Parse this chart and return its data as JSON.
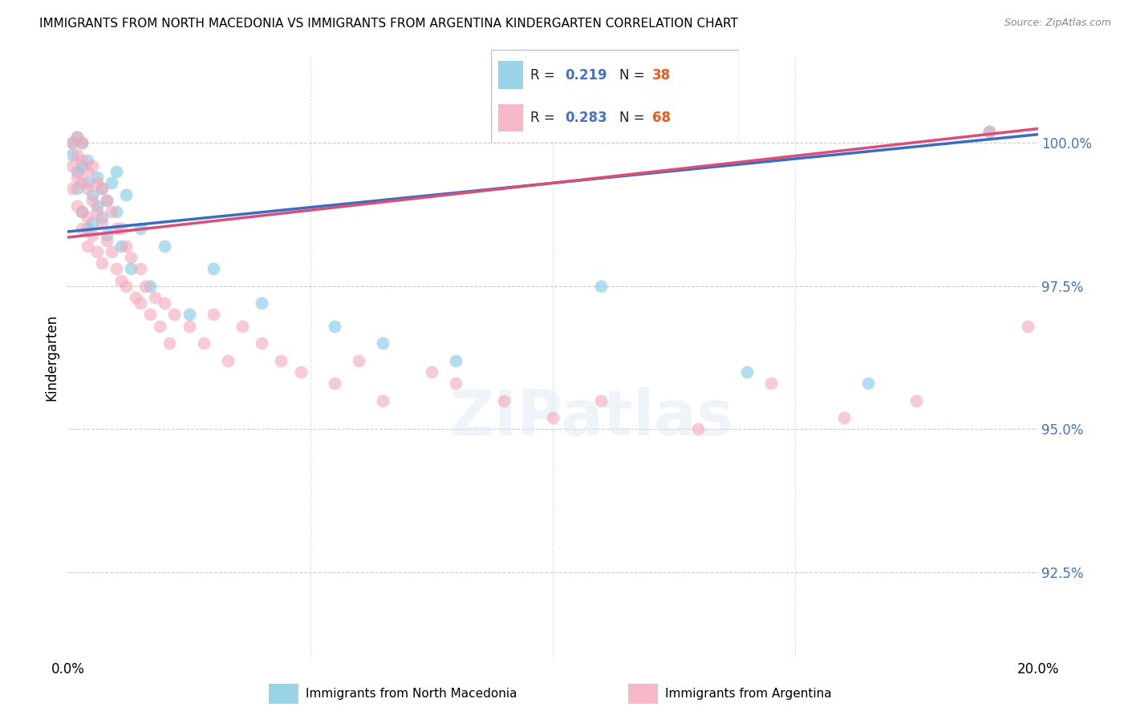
{
  "title": "IMMIGRANTS FROM NORTH MACEDONIA VS IMMIGRANTS FROM ARGENTINA KINDERGARTEN CORRELATION CHART",
  "source": "Source: ZipAtlas.com",
  "ylabel": "Kindergarten",
  "y_ticks": [
    92.5,
    95.0,
    97.5,
    100.0
  ],
  "y_tick_labels": [
    "92.5%",
    "95.0%",
    "97.5%",
    "100.0%"
  ],
  "x_range": [
    0.0,
    0.2
  ],
  "y_range": [
    91.0,
    101.5
  ],
  "blue_R": 0.219,
  "blue_N": 38,
  "pink_R": 0.283,
  "pink_N": 68,
  "blue_color": "#7ec8e3",
  "pink_color": "#f4a7b9",
  "blue_line_color": "#3a6dbf",
  "pink_line_color": "#d94f7a",
  "legend_label_blue": "Immigrants from North Macedonia",
  "legend_label_pink": "Immigrants from Argentina",
  "blue_line_x0": 0.0,
  "blue_line_y0": 98.45,
  "blue_line_x1": 0.2,
  "blue_line_y1": 100.15,
  "pink_line_x0": 0.0,
  "pink_line_y0": 98.35,
  "pink_line_x1": 0.2,
  "pink_line_y1": 100.25
}
